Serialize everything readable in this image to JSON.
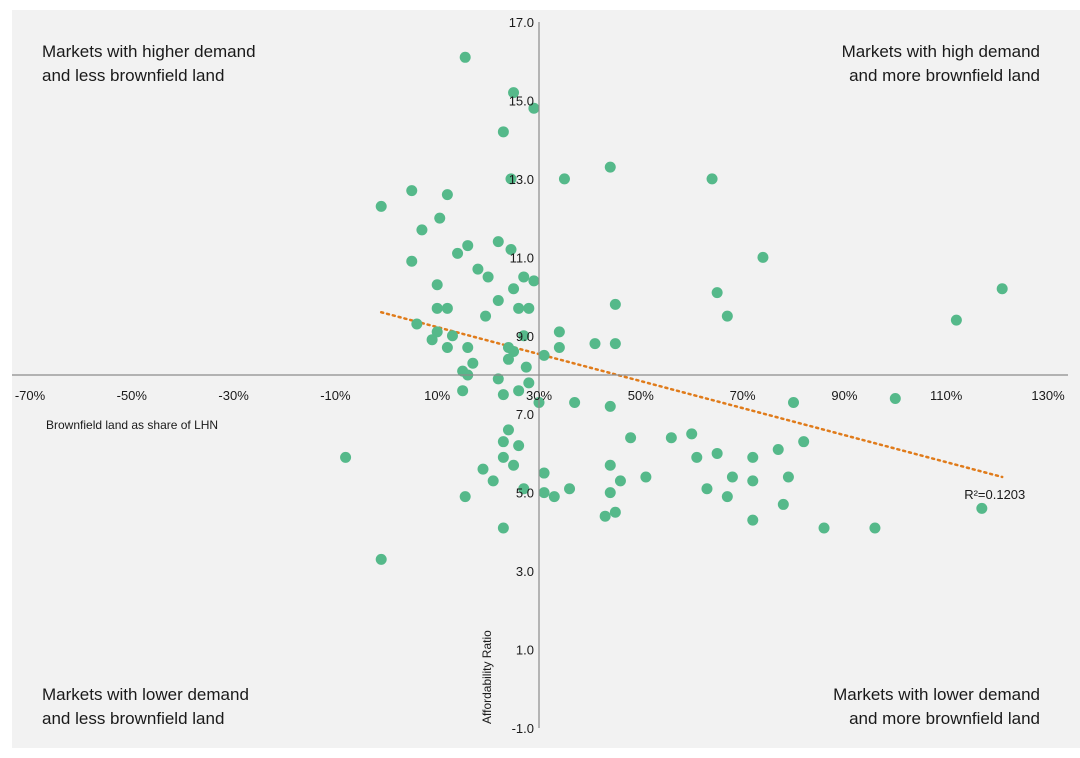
{
  "quadrants": {
    "top_left": {
      "line1": "Markets with higher demand",
      "line2": "and less brownfield land"
    },
    "top_right": {
      "line1": "Markets with high demand",
      "line2": "and more brownfield land"
    },
    "bottom_left": {
      "line1": "Markets with lower demand",
      "line2": "and less brownfield land"
    },
    "bottom_right": {
      "line1": "Markets with lower demand",
      "line2": "and more brownfield land"
    }
  },
  "chart_data": {
    "type": "scatter",
    "xlabel": "Brownfield land as share of LHN",
    "ylabel": "Affordability Ratio",
    "xlim": [
      -70,
      130
    ],
    "ylim": [
      -1,
      17
    ],
    "x_ticks": [
      "-70%",
      "-50%",
      "-30%",
      "-10%",
      "10%",
      "30%",
      "50%",
      "70%",
      "90%",
      "110%",
      "130%"
    ],
    "y_ticks": [
      "17.0",
      "15.0",
      "13.0",
      "11.0",
      "9.0",
      "7.0",
      "5.0",
      "3.0",
      "1.0",
      "-1.0"
    ],
    "axis_cross": {
      "x": 30,
      "y": 8.0
    },
    "point_color": "#55b98a",
    "trend_color": "#e07b1a",
    "trendline": {
      "x": [
        -1,
        121
      ],
      "y": [
        9.6,
        5.4
      ]
    },
    "r_squared_label": "R²=0.1203",
    "series": [
      {
        "points": [
          [
            -1,
            12.3
          ],
          [
            5,
            12.7
          ],
          [
            12,
            12.6
          ],
          [
            10.5,
            12.0
          ],
          [
            7,
            11.7
          ],
          [
            16,
            11.3
          ],
          [
            5,
            10.9
          ],
          [
            14,
            11.1
          ],
          [
            22,
            11.4
          ],
          [
            24.5,
            11.2
          ],
          [
            18,
            10.7
          ],
          [
            20,
            10.5
          ],
          [
            27,
            10.5
          ],
          [
            29,
            10.4
          ],
          [
            10,
            10.3
          ],
          [
            25,
            10.2
          ],
          [
            22,
            9.9
          ],
          [
            10,
            9.7
          ],
          [
            12,
            9.7
          ],
          [
            19.5,
            9.5
          ],
          [
            26,
            9.7
          ],
          [
            28,
            9.7
          ],
          [
            6,
            9.3
          ],
          [
            10,
            9.1
          ],
          [
            13,
            9.0
          ],
          [
            9,
            8.9
          ],
          [
            16,
            8.7
          ],
          [
            12,
            8.7
          ],
          [
            24,
            8.7
          ],
          [
            27,
            9.0
          ],
          [
            25,
            8.6
          ],
          [
            17,
            8.3
          ],
          [
            24,
            8.4
          ],
          [
            27.5,
            8.2
          ],
          [
            15,
            8.1
          ],
          [
            16,
            8.0
          ],
          [
            22,
            7.9
          ],
          [
            28,
            7.8
          ],
          [
            15,
            7.6
          ],
          [
            23,
            7.5
          ],
          [
            26,
            7.6
          ],
          [
            30,
            7.3
          ],
          [
            34,
            9.1
          ],
          [
            34,
            8.7
          ],
          [
            31,
            8.5
          ],
          [
            41,
            8.8
          ],
          [
            45,
            8.8
          ],
          [
            45,
            9.8
          ],
          [
            37,
            7.3
          ],
          [
            44,
            7.2
          ],
          [
            24.5,
            13.0
          ],
          [
            23,
            14.2
          ],
          [
            25,
            15.2
          ],
          [
            29,
            14.8
          ],
          [
            15.5,
            16.1
          ],
          [
            35,
            13.0
          ],
          [
            44,
            13.3
          ],
          [
            64,
            13.0
          ],
          [
            74,
            11.0
          ],
          [
            65,
            10.1
          ],
          [
            67,
            9.5
          ],
          [
            112,
            9.4
          ],
          [
            121,
            10.2
          ],
          [
            80,
            7.3
          ],
          [
            100,
            7.4
          ],
          [
            24,
            6.6
          ],
          [
            23,
            6.3
          ],
          [
            26,
            6.2
          ],
          [
            23,
            5.9
          ],
          [
            25,
            5.7
          ],
          [
            19,
            5.6
          ],
          [
            31,
            5.5
          ],
          [
            21,
            5.3
          ],
          [
            27,
            5.1
          ],
          [
            31,
            5.0
          ],
          [
            36,
            5.1
          ],
          [
            33,
            4.9
          ],
          [
            44,
            5.7
          ],
          [
            44,
            5.0
          ],
          [
            46,
            5.3
          ],
          [
            51,
            5.4
          ],
          [
            48,
            6.4
          ],
          [
            56,
            6.4
          ],
          [
            60,
            6.5
          ],
          [
            61,
            5.9
          ],
          [
            63,
            5.1
          ],
          [
            65,
            6.0
          ],
          [
            68,
            5.4
          ],
          [
            67,
            4.9
          ],
          [
            72,
            5.9
          ],
          [
            72,
            5.3
          ],
          [
            77,
            6.1
          ],
          [
            79,
            5.4
          ],
          [
            82,
            6.3
          ],
          [
            78,
            4.7
          ],
          [
            72,
            4.3
          ],
          [
            86,
            4.1
          ],
          [
            96,
            4.1
          ],
          [
            117,
            4.6
          ],
          [
            45,
            4.5
          ],
          [
            43,
            4.4
          ],
          [
            23,
            4.1
          ],
          [
            -8,
            5.9
          ],
          [
            15.5,
            4.9
          ],
          [
            -1,
            3.3
          ]
        ]
      }
    ]
  }
}
